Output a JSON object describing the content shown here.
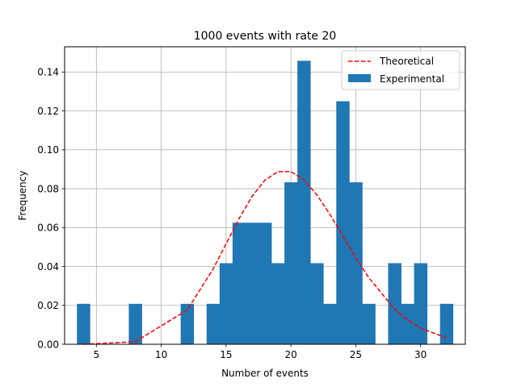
{
  "chart_data": {
    "type": "bar",
    "title": "1000 events with rate 20",
    "xlabel": "Number of events",
    "ylabel": "Frequency",
    "xlim": [
      2.55,
      33.45
    ],
    "ylim": [
      0,
      0.153
    ],
    "xticks": [
      5,
      10,
      15,
      20,
      25,
      30
    ],
    "yticks": [
      0.0,
      0.02,
      0.04,
      0.06,
      0.08,
      0.1,
      0.12,
      0.14
    ],
    "ytick_labels": [
      "0.00",
      "0.02",
      "0.04",
      "0.06",
      "0.08",
      "0.10",
      "0.12",
      "0.14"
    ],
    "grid": true,
    "legend_placement": "upper right",
    "bar_width": 1.0,
    "bars": {
      "name": "Experimental",
      "color": "#1f77b4",
      "x": [
        4,
        8,
        12,
        14,
        15,
        16,
        17,
        18,
        19,
        20,
        21,
        22,
        23,
        24,
        25,
        26,
        28,
        29,
        30,
        32
      ],
      "values": [
        0.0208,
        0.0208,
        0.0208,
        0.0208,
        0.0417,
        0.0625,
        0.0625,
        0.0625,
        0.0417,
        0.0833,
        0.1458,
        0.0417,
        0.0208,
        0.125,
        0.0833,
        0.0208,
        0.0417,
        0.0208,
        0.0417,
        0.0208
      ]
    },
    "line": {
      "name": "Theoretical",
      "color": "#ff0000",
      "style": "dashed",
      "x": [
        4,
        8,
        12,
        14,
        15,
        16,
        17,
        18,
        19,
        20,
        21,
        22,
        23,
        24,
        25,
        26,
        28,
        29,
        30,
        32
      ],
      "values": [
        0.0,
        0.0013,
        0.0176,
        0.0387,
        0.0516,
        0.0646,
        0.076,
        0.0844,
        0.0888,
        0.0888,
        0.0846,
        0.0769,
        0.0669,
        0.0557,
        0.0446,
        0.0343,
        0.0181,
        0.0125,
        0.0083,
        0.0033
      ]
    },
    "legend": [
      "Theoretical",
      "Experimental"
    ]
  }
}
